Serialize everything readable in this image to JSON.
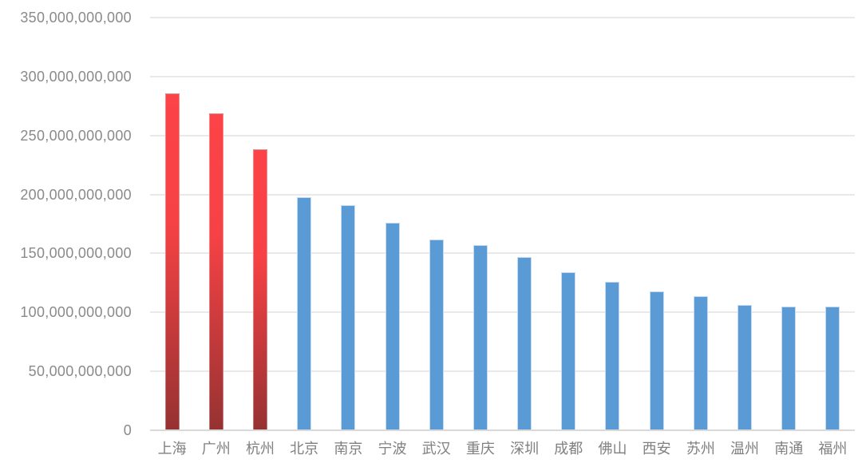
{
  "chart_data": {
    "type": "bar",
    "title": "",
    "xlabel": "",
    "ylabel": "",
    "legend": false,
    "grid": true,
    "categories": [
      "上海",
      "广州",
      "杭州",
      "北京",
      "南京",
      "宁波",
      "武汉",
      "重庆",
      "深圳",
      "成都",
      "佛山",
      "西安",
      "苏州",
      "温州",
      "南通",
      "福州"
    ],
    "values": [
      286000000000,
      269000000000,
      238000000000,
      198000000000,
      191000000000,
      176000000000,
      162000000000,
      157000000000,
      147000000000,
      134000000000,
      126000000000,
      118000000000,
      114000000000,
      106000000000,
      105000000000,
      105000000000
    ],
    "highlighted_categories": [
      "上海",
      "广州",
      "杭州"
    ],
    "ylim": [
      0,
      350000000000
    ],
    "y_ticks": [
      {
        "value": 350000000000,
        "label": "350,000,000,000"
      },
      {
        "value": 300000000000,
        "label": "300,000,000,000"
      },
      {
        "value": 250000000000,
        "label": "250,000,000,000"
      },
      {
        "value": 200000000000,
        "label": "200,000,000,000"
      },
      {
        "value": 150000000000,
        "label": "150,000,000,000"
      },
      {
        "value": 100000000000,
        "label": "100,000,000,000"
      },
      {
        "value": 50000000000,
        "label": "50,000,000,000"
      },
      {
        "value": 0,
        "label": "0"
      }
    ],
    "colors": {
      "highlight_gradient_top": "#fc4347",
      "highlight_gradient_mid": "#f64245",
      "highlight_gradient_bottom": "#963232",
      "default_bar": "#5b9bd5",
      "axis_label": "#8a8a8a",
      "x_label": "#808080",
      "gridline": "#e9e9e9",
      "baseline": "#d9d9d9",
      "background": "#ffffff"
    }
  }
}
